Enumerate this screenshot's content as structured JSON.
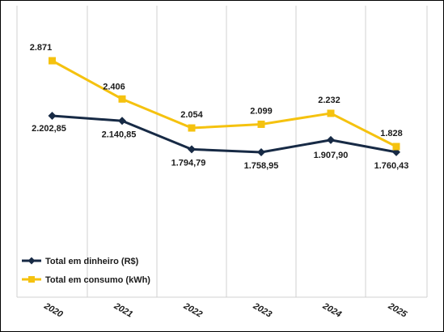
{
  "chart_data": {
    "type": "line",
    "title": "",
    "xlabel": "",
    "ylabel": "",
    "categories": [
      "2020",
      "2021",
      "2022",
      "2023",
      "2024",
      "2025"
    ],
    "grid": "vertical",
    "legend_position": "bottom-left",
    "series": [
      {
        "name": "Total em dinheiro (R$)",
        "color": "#172a45",
        "marker": "diamond",
        "values": [
          2202.85,
          2140.85,
          1794.79,
          1758.95,
          1907.9,
          1760.43
        ],
        "labels": [
          "2.202,85",
          "2.140,85",
          "1.794,79",
          "1.758,95",
          "1.907,90",
          "1.760,43"
        ]
      },
      {
        "name": "Total em consumo (kWh)",
        "color": "#f5c20f",
        "marker": "square",
        "values": [
          2871,
          2406,
          2054,
          2099,
          2232,
          1828
        ],
        "labels": [
          "2.871",
          "2.406",
          "2.054",
          "2.099",
          "2.232",
          "1.828"
        ]
      }
    ]
  }
}
